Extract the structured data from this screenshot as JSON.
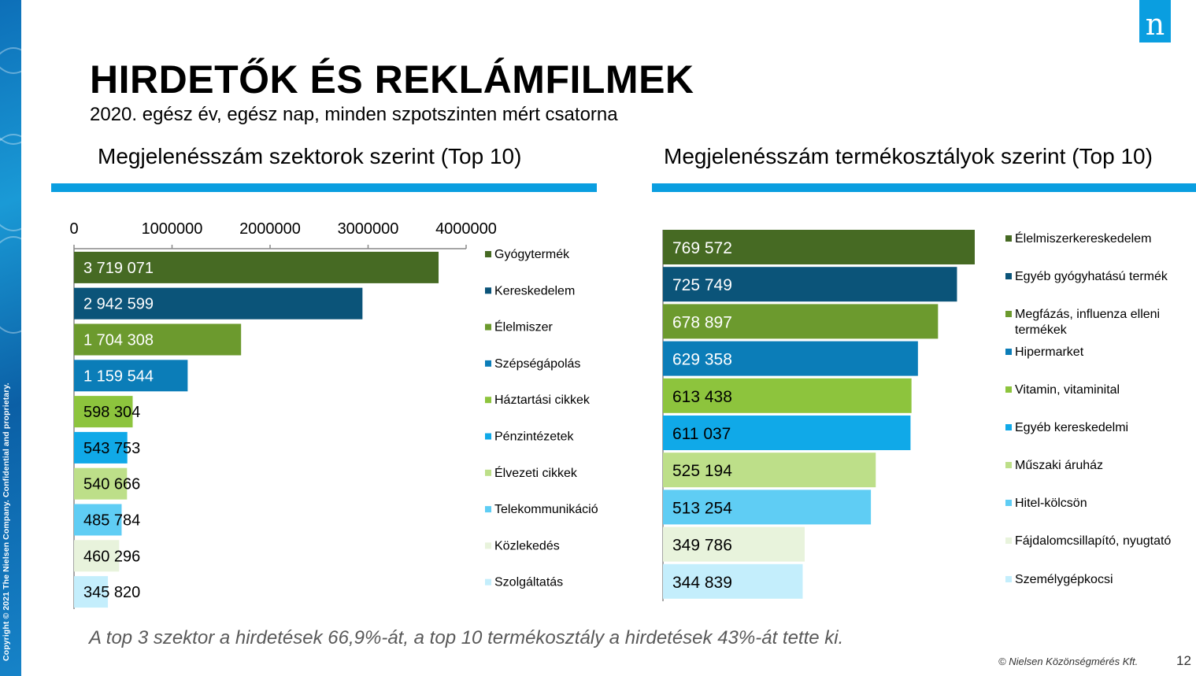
{
  "copyright": "Copyright © 2021 The Nielsen Company. Confidential and proprietary.",
  "logo": "n",
  "title": "HIRDETŐK ÉS REKLÁMFILMEK",
  "subtitle": "2020. egész év, egész nap, minden szpotszinten mért csatorna",
  "left_section_title": "Megjelenésszám szektorok szerint (Top 10)",
  "right_section_title": "Megjelenésszám termékosztályok szerint (Top 10)",
  "footer_note": "A top 3 szektor a hirdetések 66,9%-át, a top 10 termékosztály a hirdetések 43%-át tette ki.",
  "footer_copyright": "© Nielsen Közönségmérés Kft.",
  "page_number": "12",
  "colors": {
    "accent": "#0a9ee0",
    "bars": [
      "#466a23",
      "#0b5479",
      "#6c9a2e",
      "#0b7db8",
      "#8dc43d",
      "#10a9e8",
      "#bddf89",
      "#5fcdf4",
      "#e8f3dc",
      "#c4eefc"
    ]
  },
  "chart_data": [
    {
      "type": "bar",
      "orientation": "horizontal",
      "categories": [
        "Gyógytermék",
        "Kereskedelem",
        "Élelmiszer",
        "Szépségápolás",
        "Háztartási cikkek",
        "Pénzintézetek",
        "Élvezeti cikkek",
        "Telekommunikáció",
        "Közlekedés",
        "Szolgáltatás"
      ],
      "values": [
        3719071,
        2942599,
        1704308,
        1159544,
        598304,
        543753,
        540666,
        485784,
        460296,
        345820
      ],
      "labels": [
        "3 719 071",
        "2 942 599",
        "1 704 308",
        "1 159 544",
        "598 304",
        "543 753",
        "540 666",
        "485 784",
        "460 296",
        "345 820"
      ],
      "xlim": [
        0,
        4000000
      ],
      "x_ticks": [
        "0",
        "1000000",
        "2000000",
        "3000000",
        "4000000"
      ],
      "axis_position": "top",
      "legend": "right",
      "grid": false
    },
    {
      "type": "bar",
      "orientation": "horizontal",
      "categories": [
        "Élelmiszerkereskedelem",
        "Egyéb gyógyhatású termék",
        "Megfázás, influenza elleni termékek",
        "Hipermarket",
        "Vitamin, vitaminital",
        "Egyéb kereskedelmi",
        "Műszaki áruház",
        "Hitel-kölcsön",
        "Fájdalomcsillapító, nyugtató",
        "Személygépkocsi"
      ],
      "values": [
        769572,
        725749,
        678897,
        629358,
        613438,
        611037,
        525194,
        513254,
        349786,
        344839
      ],
      "labels": [
        "769 572",
        "725 749",
        "678 897",
        "629 358",
        "613 438",
        "611 037",
        "525 194",
        "513 254",
        "349 786",
        "344 839"
      ],
      "legend": "right",
      "grid": false
    }
  ]
}
